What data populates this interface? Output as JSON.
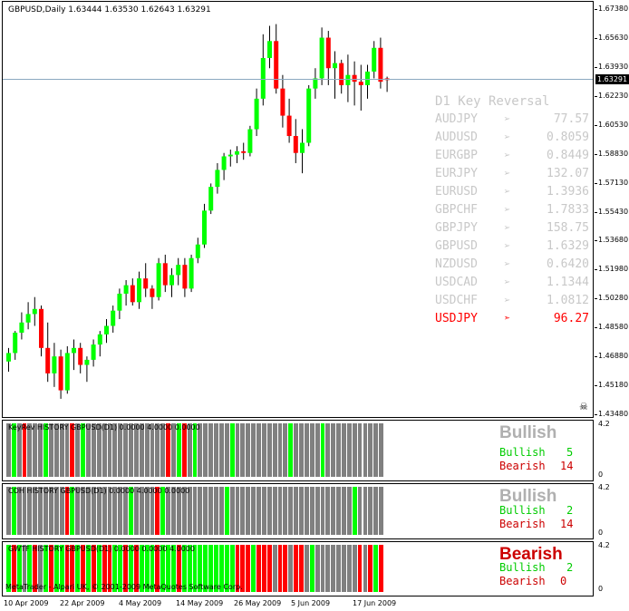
{
  "chart": {
    "title": "GBPUSD,Daily  1.63444 1.63530 1.62643 1.63291",
    "current_price": "1.63291",
    "price_labels": [
      "1.67380",
      "1.65630",
      "1.63930",
      "1.62230",
      "1.60530",
      "1.58830",
      "1.57130",
      "1.55430",
      "1.53680",
      "1.51980",
      "1.50280",
      "1.48580",
      "1.46880",
      "1.45180",
      "1.43480"
    ],
    "date_labels": [
      "10 Apr 2009",
      "22 Apr 2009",
      "4 May 2009",
      "14 May 2009",
      "26 May 2009",
      "5 Jun 2009",
      "17 Jun 2009"
    ],
    "skull_icon": "skull-icon",
    "colors": {
      "bull": "#00ff00",
      "bear": "#ff0000",
      "neutral": "#808080"
    }
  },
  "chart_data": {
    "type": "candlestick",
    "series": [
      {
        "name": "GBPUSD",
        "ohlc": [
          [
            1.467,
            1.475,
            1.461,
            1.472
          ],
          [
            1.472,
            1.485,
            1.468,
            1.484
          ],
          [
            1.484,
            1.496,
            1.48,
            1.49
          ],
          [
            1.49,
            1.502,
            1.486,
            1.495
          ],
          [
            1.495,
            1.505,
            1.488,
            1.498
          ],
          [
            1.498,
            1.5,
            1.47,
            1.475
          ],
          [
            1.475,
            1.49,
            1.455,
            1.46
          ],
          [
            1.46,
            1.478,
            1.452,
            1.47
          ],
          [
            1.47,
            1.474,
            1.445,
            1.45
          ],
          [
            1.45,
            1.476,
            1.448,
            1.472
          ],
          [
            1.472,
            1.48,
            1.462,
            1.475
          ],
          [
            1.475,
            1.478,
            1.46,
            1.465
          ],
          [
            1.465,
            1.47,
            1.455,
            1.468
          ],
          [
            1.468,
            1.48,
            1.464,
            1.477
          ],
          [
            1.477,
            1.485,
            1.47,
            1.483
          ],
          [
            1.483,
            1.492,
            1.478,
            1.488
          ],
          [
            1.488,
            1.5,
            1.484,
            1.497
          ],
          [
            1.497,
            1.51,
            1.492,
            1.507
          ],
          [
            1.507,
            1.515,
            1.5,
            1.512
          ],
          [
            1.512,
            1.516,
            1.5,
            1.502
          ],
          [
            1.502,
            1.52,
            1.498,
            1.516
          ],
          [
            1.516,
            1.525,
            1.505,
            1.51
          ],
          [
            1.51,
            1.512,
            1.498,
            1.505
          ],
          [
            1.505,
            1.528,
            1.503,
            1.525
          ],
          [
            1.525,
            1.53,
            1.508,
            1.512
          ],
          [
            1.512,
            1.522,
            1.505,
            1.518
          ],
          [
            1.518,
            1.528,
            1.512,
            1.524
          ],
          [
            1.524,
            1.528,
            1.505,
            1.51
          ],
          [
            1.51,
            1.53,
            1.508,
            1.528
          ],
          [
            1.528,
            1.54,
            1.525,
            1.536
          ],
          [
            1.536,
            1.56,
            1.534,
            1.556
          ],
          [
            1.556,
            1.572,
            1.554,
            1.57
          ],
          [
            1.57,
            1.584,
            1.566,
            1.58
          ],
          [
            1.58,
            1.59,
            1.574,
            1.588
          ],
          [
            1.588,
            1.592,
            1.582,
            1.589
          ],
          [
            1.589,
            1.594,
            1.584,
            1.591
          ],
          [
            1.591,
            1.596,
            1.586,
            1.59
          ],
          [
            1.59,
            1.606,
            1.588,
            1.604
          ],
          [
            1.604,
            1.628,
            1.6,
            1.622
          ],
          [
            1.622,
            1.66,
            1.618,
            1.646
          ],
          [
            1.646,
            1.665,
            1.64,
            1.656
          ],
          [
            1.656,
            1.666,
            1.625,
            1.628
          ],
          [
            1.628,
            1.636,
            1.605,
            1.612
          ],
          [
            1.612,
            1.622,
            1.596,
            1.6
          ],
          [
            1.6,
            1.61,
            1.584,
            1.59
          ],
          [
            1.59,
            1.604,
            1.578,
            1.596
          ],
          [
            1.596,
            1.63,
            1.594,
            1.628
          ],
          [
            1.628,
            1.64,
            1.622,
            1.634
          ],
          [
            1.634,
            1.664,
            1.63,
            1.658
          ],
          [
            1.658,
            1.662,
            1.63,
            1.64
          ],
          [
            1.64,
            1.65,
            1.622,
            1.643
          ],
          [
            1.643,
            1.645,
            1.625,
            1.63
          ],
          [
            1.63,
            1.648,
            1.62,
            1.636
          ],
          [
            1.636,
            1.644,
            1.618,
            1.632
          ],
          [
            1.632,
            1.642,
            1.615,
            1.63
          ],
          [
            1.63,
            1.642,
            1.622,
            1.638
          ],
          [
            1.638,
            1.656,
            1.634,
            1.652
          ],
          [
            1.652,
            1.658,
            1.628,
            1.632
          ],
          [
            1.634,
            1.635,
            1.626,
            1.633
          ]
        ]
      }
    ],
    "x": [
      "10 Apr 2009",
      "22 Apr 2009",
      "4 May 2009",
      "14 May 2009",
      "26 May 2009",
      "5 Jun 2009",
      "17 Jun 2009"
    ],
    "ylim": [
      1.4348,
      1.6738
    ]
  },
  "key_reversal": {
    "title": "D1 Key Reversal",
    "rows": [
      {
        "pair": "AUDJPY",
        "arrow": "➢",
        "value": "77.57",
        "highlight": false
      },
      {
        "pair": "AUDUSD",
        "arrow": "➢",
        "value": "0.8059",
        "highlight": false
      },
      {
        "pair": "EURGBP",
        "arrow": "➢",
        "value": "0.8449",
        "highlight": false
      },
      {
        "pair": "EURJPY",
        "arrow": "➢",
        "value": "132.07",
        "highlight": false
      },
      {
        "pair": "EURUSD",
        "arrow": "➢",
        "value": "1.3936",
        "highlight": false
      },
      {
        "pair": "GBPCHF",
        "arrow": "➢",
        "value": "1.7833",
        "highlight": false
      },
      {
        "pair": "GBPJPY",
        "arrow": "➢",
        "value": "158.75",
        "highlight": false
      },
      {
        "pair": "GBPUSD",
        "arrow": "➢",
        "value": "1.6329",
        "highlight": false
      },
      {
        "pair": "NZDUSD",
        "arrow": "➢",
        "value": "0.6420",
        "highlight": false
      },
      {
        "pair": "USDCAD",
        "arrow": "➢",
        "value": "1.1344",
        "highlight": false
      },
      {
        "pair": "USDCHF",
        "arrow": "➢",
        "value": "1.0812",
        "highlight": false
      },
      {
        "pair": "USDJPY",
        "arrow": "➣",
        "value": "96.27",
        "highlight": true
      }
    ]
  },
  "indicators": [
    {
      "label": "KeyRev HISTORY GBPUSD(D1) 0.0000 4.0000 0.0000",
      "scale": "4.2",
      "zero": "0",
      "verdict": "Bullish",
      "verdict_color": "#b0b0b0",
      "bullish_label": "Bullish",
      "bullish_count": "5",
      "bearish_label": "Bearish",
      "bearish_count": "14",
      "bars": "GGGRGGGGGGGRGGGGGGGGGGGGRGGGGGGGRGRGGGGGGGGGGGGGGGGGGGGGGGGGGGGGGGGGGGGGGG"
    },
    {
      "label": "COH HISTORY GBPUSD(D1) 0.0000 4.0000 0.0000",
      "scale": "4.2",
      "zero": "0",
      "verdict": "Bullish",
      "verdict_color": "#b0b0b0",
      "bullish_label": "Bullish",
      "bullish_count": "2",
      "bearish_label": "Bearish",
      "bearish_count": "14",
      "bars": ""
    },
    {
      "label": "GWTF HISTORY GBPUSD(D1) 0.0000 0.0000 4.0000",
      "scale": "4.2",
      "zero": "0",
      "verdict": "Bearish",
      "verdict_color": "#cc0000",
      "bullish_label": "Bullish",
      "bullish_count": "2",
      "bearish_label": "Bearish",
      "bearish_count": "0",
      "bars": ""
    }
  ],
  "copyright": "MetaTrader - Alpari UK, © 2001-2009 MetaQuotes Software Corp."
}
